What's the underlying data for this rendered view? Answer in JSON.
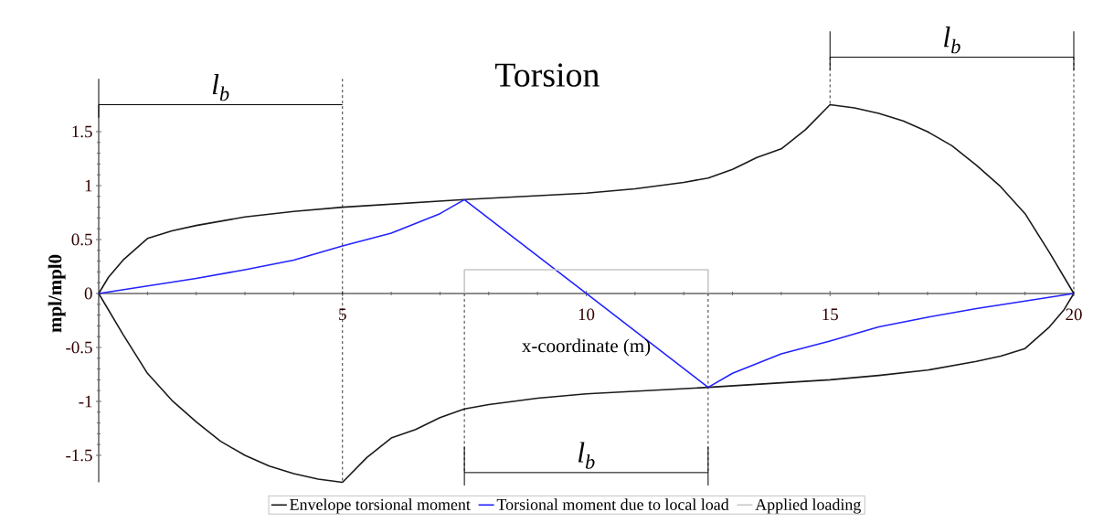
{
  "chart_data": {
    "type": "line",
    "title": "Torsion",
    "xlabel": "x-coordinate (m)",
    "ylabel": "mpl/mpl0",
    "xlim": [
      0,
      20
    ],
    "ylim": [
      -1.75,
      1.75
    ],
    "xticks": [
      {
        "value": 0,
        "label": null
      },
      5,
      10,
      15,
      20
    ],
    "yticks": [
      -1.5,
      -1,
      -0.5,
      0,
      0.5,
      1,
      1.5
    ],
    "legend": "bottom",
    "series": [
      {
        "name": "Envelope torsional moment",
        "color": "#1a1a1a",
        "x": [
          0,
          0.2,
          0.5,
          1,
          1.5,
          2,
          3,
          4,
          5,
          7.5,
          10,
          11,
          12,
          12.5,
          13,
          13.5,
          14,
          14.5,
          15,
          15.5,
          16,
          16.5,
          17,
          17.5,
          18,
          18.5,
          19,
          19.5,
          20
        ],
        "values": [
          0,
          0.15,
          0.31,
          0.51,
          0.58,
          0.63,
          0.71,
          0.76,
          0.8,
          0.87,
          0.93,
          0.97,
          1.03,
          1.07,
          1.15,
          1.26,
          1.34,
          1.52,
          1.75,
          1.72,
          1.67,
          1.6,
          1.5,
          1.37,
          1.19,
          0.99,
          0.74,
          0.38,
          0
        ]
      },
      {
        "color": "#1a1a1a",
        "x": [
          0,
          0.5,
          1,
          1.5,
          2,
          2.5,
          3,
          3.5,
          4,
          4.5,
          5,
          5.5,
          6,
          6.5,
          7,
          7.5,
          8,
          9,
          10,
          12.5,
          15,
          16,
          17,
          18,
          18.5,
          19,
          19.5,
          19.8,
          20
        ],
        "values": [
          0,
          -0.38,
          -0.74,
          -0.99,
          -1.19,
          -1.37,
          -1.5,
          -1.6,
          -1.67,
          -1.72,
          -1.75,
          -1.52,
          -1.34,
          -1.26,
          -1.15,
          -1.07,
          -1.03,
          -0.97,
          -0.93,
          -0.87,
          -0.8,
          -0.76,
          -0.71,
          -0.63,
          -0.58,
          -0.51,
          -0.31,
          -0.15,
          0
        ]
      },
      {
        "name": "Torsional moment due to local load",
        "color": "#2222ff",
        "x": [
          0,
          1,
          2,
          3,
          4,
          5,
          6,
          7,
          7.5,
          10,
          12.5,
          13,
          14,
          15,
          16,
          17,
          18,
          19,
          20
        ],
        "values": [
          0,
          0.07,
          0.14,
          0.22,
          0.31,
          0.44,
          0.56,
          0.74,
          0.87,
          0,
          -0.87,
          -0.74,
          -0.56,
          -0.44,
          -0.31,
          -0.22,
          -0.14,
          -0.07,
          0
        ]
      },
      {
        "name": "Applied loading",
        "color": "#c8c8c8",
        "x": [
          7.5,
          7.5,
          12.5,
          12.5
        ],
        "values": [
          0,
          0.22,
          0.22,
          0
        ]
      }
    ],
    "ref_lines": [
      {
        "axis": "x",
        "value": 5,
        "color": "#000000",
        "line_style": "dashed"
      },
      {
        "axis": "x",
        "value": 7.5,
        "color": "#000000",
        "line_style": "dashed"
      },
      {
        "axis": "x",
        "value": 12.5,
        "color": "#000000",
        "line_style": "dashed"
      }
    ],
    "annotations": [
      "l$_{b}$",
      "l$_{b}$",
      "l$_{b}$"
    ]
  }
}
